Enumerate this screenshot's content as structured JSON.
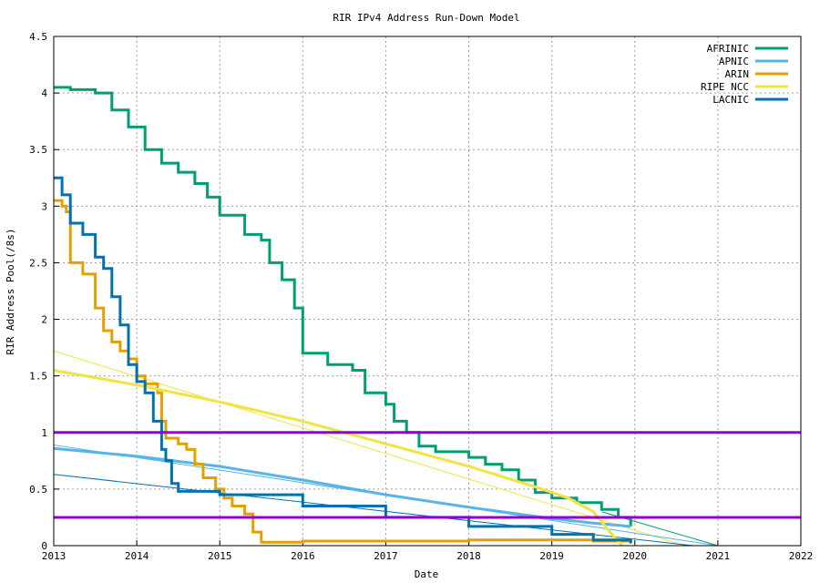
{
  "chart_data": {
    "type": "line",
    "title": "RIR IPv4 Address Run-Down Model",
    "xlabel": "Date",
    "ylabel": "RIR Address Pool(/8s)",
    "xlim": [
      2013,
      2022
    ],
    "ylim": [
      0,
      4.5
    ],
    "xticks": [
      "2013",
      "2014",
      "2015",
      "2016",
      "2017",
      "2018",
      "2019",
      "2020",
      "2021",
      "2022"
    ],
    "yticks": [
      "0",
      "0.5",
      "1",
      "1.5",
      "2",
      "2.5",
      "3",
      "3.5",
      "4",
      "4.5"
    ],
    "grid": true,
    "legend_position": "top-right",
    "reference_lines": [
      {
        "y": 1.0,
        "color": "#9400d3"
      },
      {
        "y": 0.25,
        "color": "#9400d3"
      }
    ],
    "series": [
      {
        "name": "AFRINIC",
        "color": "#009e73",
        "x": [
          2013.0,
          2013.2,
          2013.5,
          2013.7,
          2013.9,
          2014.1,
          2014.3,
          2014.5,
          2014.7,
          2014.85,
          2015.0,
          2015.3,
          2015.5,
          2015.6,
          2015.75,
          2015.9,
          2016.0,
          2016.3,
          2016.6,
          2016.75,
          2017.0,
          2017.1,
          2017.25,
          2017.4,
          2017.6,
          2018.0,
          2018.2,
          2018.4,
          2018.6,
          2018.8,
          2019.0,
          2019.3,
          2019.6,
          2019.8,
          2019.95
        ],
        "y": [
          4.05,
          4.03,
          4.0,
          3.85,
          3.7,
          3.5,
          3.38,
          3.3,
          3.2,
          3.08,
          2.92,
          2.75,
          2.7,
          2.5,
          2.35,
          2.1,
          1.7,
          1.6,
          1.55,
          1.35,
          1.25,
          1.1,
          1.0,
          0.88,
          0.83,
          0.78,
          0.72,
          0.67,
          0.58,
          0.47,
          0.42,
          0.38,
          0.32,
          0.25,
          0.17
        ]
      },
      {
        "name": "APNIC",
        "color": "#56b4e9",
        "x": [
          2013.0,
          2014.0,
          2015.0,
          2016.0,
          2017.0,
          2018.0,
          2019.0,
          2019.5,
          2019.95
        ],
        "y": [
          0.86,
          0.79,
          0.7,
          0.58,
          0.45,
          0.34,
          0.24,
          0.2,
          0.17
        ]
      },
      {
        "name": "ARIN",
        "color": "#e69f00",
        "x": [
          2013.0,
          2013.1,
          2013.15,
          2013.2,
          2013.35,
          2013.5,
          2013.6,
          2013.7,
          2013.8,
          2013.9,
          2014.0,
          2014.1,
          2014.25,
          2014.3,
          2014.35,
          2014.5,
          2014.6,
          2014.7,
          2014.8,
          2014.95,
          2015.05,
          2015.15,
          2015.3,
          2015.4,
          2015.5,
          2016.0,
          2017.0,
          2018.0,
          2019.0,
          2019.5,
          2019.95
        ],
        "y": [
          3.05,
          3.0,
          2.95,
          2.5,
          2.4,
          2.1,
          1.9,
          1.8,
          1.72,
          1.65,
          1.5,
          1.43,
          1.35,
          1.1,
          0.95,
          0.9,
          0.85,
          0.72,
          0.6,
          0.5,
          0.42,
          0.35,
          0.28,
          0.12,
          0.03,
          0.04,
          0.04,
          0.05,
          0.05,
          0.04,
          0.05
        ]
      },
      {
        "name": "RIPE NCC",
        "color": "#f0e442",
        "x": [
          2013.0,
          2014.0,
          2015.0,
          2016.0,
          2017.0,
          2018.0,
          2018.8,
          2019.2,
          2019.5,
          2019.7,
          2019.85
        ],
        "y": [
          1.55,
          1.42,
          1.27,
          1.1,
          0.9,
          0.7,
          0.52,
          0.42,
          0.3,
          0.12,
          0.0
        ]
      },
      {
        "name": "LACNIC",
        "color": "#0072b2",
        "x": [
          2013.0,
          2013.1,
          2013.2,
          2013.35,
          2013.5,
          2013.6,
          2013.7,
          2013.8,
          2013.9,
          2014.0,
          2014.1,
          2014.2,
          2014.3,
          2014.35,
          2014.42,
          2014.5,
          2015.0,
          2016.0,
          2017.0,
          2018.0,
          2019.0,
          2019.5,
          2019.95
        ],
        "y": [
          3.25,
          3.1,
          2.85,
          2.75,
          2.55,
          2.45,
          2.2,
          1.95,
          1.6,
          1.45,
          1.35,
          1.1,
          0.85,
          0.75,
          0.55,
          0.48,
          0.45,
          0.35,
          0.25,
          0.17,
          0.1,
          0.05,
          0.02
        ]
      }
    ],
    "trend_lines": [
      {
        "color": "#f0e442",
        "x": [
          2013.0,
          2020.6
        ],
        "y": [
          1.72,
          0.0
        ]
      },
      {
        "color": "#56b4e9",
        "x": [
          2013.0,
          2021.0
        ],
        "y": [
          0.89,
          0.0
        ]
      },
      {
        "color": "#0072b2",
        "x": [
          2013.0,
          2020.7
        ],
        "y": [
          0.63,
          0.0
        ]
      },
      {
        "color": "#009e73",
        "x": [
          2019.6,
          2021.0
        ],
        "y": [
          0.3,
          0.0
        ]
      }
    ]
  }
}
